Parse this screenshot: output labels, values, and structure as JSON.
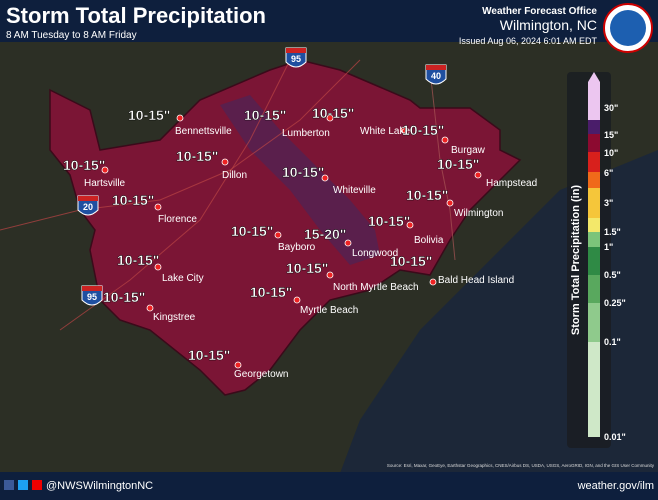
{
  "header": {
    "title": "Storm Total Precipitation",
    "subtitle": "8 AM Tuesday to 8 AM Friday",
    "office": "Weather Forecast Office",
    "location": "Wilmington, NC",
    "issued": "Issued Aug 06, 2024 6:01 AM EDT"
  },
  "highways": [
    "95",
    "40",
    "20",
    "95"
  ],
  "cities": [
    "Bennettsville",
    "Lumberton",
    "White Lake",
    "Burgaw",
    "Hartsville",
    "Dillon",
    "Whiteville",
    "Hampstead",
    "Florence",
    "Wilmington",
    "Bayboro",
    "Bolivia",
    "Longwood",
    "Lake City",
    "Bald Head Island",
    "North Myrtle Beach",
    "Kingstree",
    "Myrtle Beach",
    "Georgetown"
  ],
  "amounts": [
    "10-15\"",
    "10-15\"",
    "10-15\"",
    "10-15\"",
    "10-15\"",
    "10-15\"",
    "10-15\"",
    "10-15\"",
    "10-15\"",
    "10-15\"",
    "10-15\"",
    "10-15\"",
    "15-20\"",
    "10-15\"",
    "10-15\"",
    "10-15\"",
    "10-15\"",
    "10-15\"",
    "10-15\""
  ],
  "legend": {
    "title": "Storm Total Precipitation (in)",
    "ticks": [
      "30\"",
      "15\"",
      "10\"",
      "6\"",
      "3\"",
      "1.5\"",
      "1\"",
      "0.5\"",
      "0.25\"",
      "0.1\"",
      "0.01\""
    ]
  },
  "footer": {
    "handle": "@NWSWilmingtonNC",
    "source": "Source: Esri, Maxar, GeoEye, Earthstar Geographics, CNES/Airbus DS, USDA, USGS, AeroGRID, IGN, and the GIS User Community",
    "url": "weather.gov/ilm"
  }
}
